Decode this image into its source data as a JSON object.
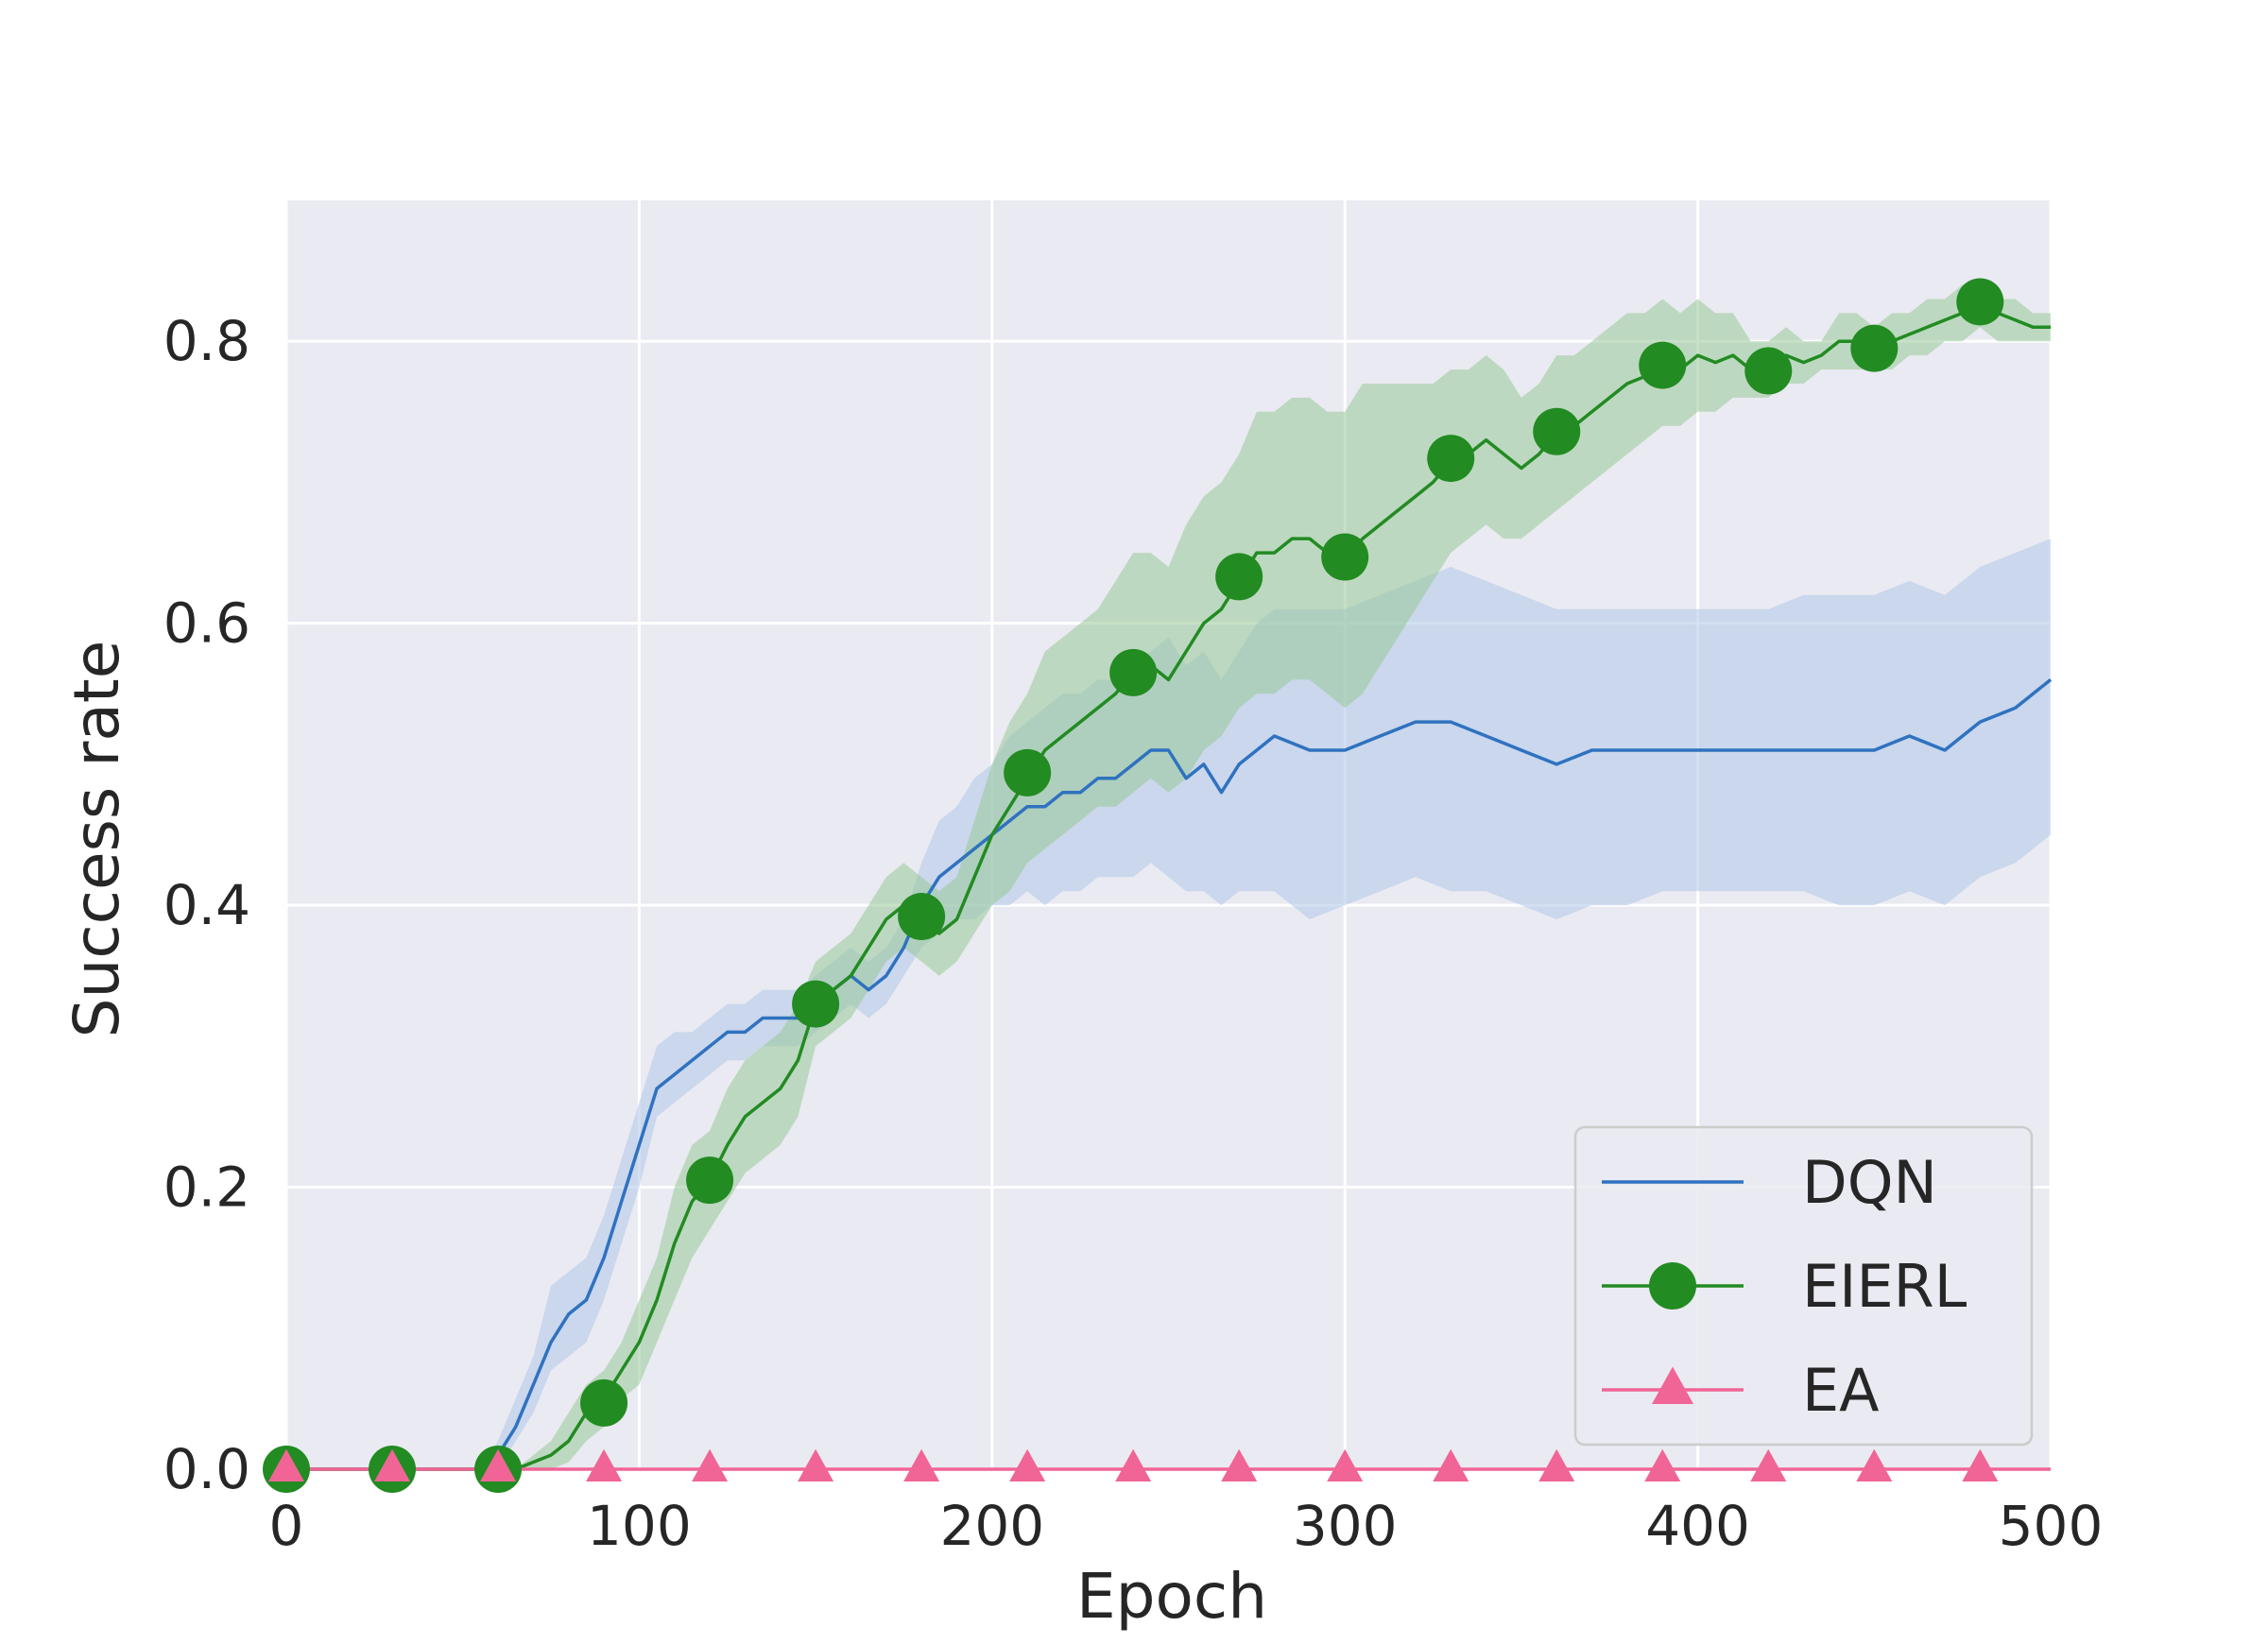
{
  "chart_data": {
    "type": "line",
    "xlabel": "Epoch",
    "ylabel": "Success rate",
    "xlim": [
      0,
      500
    ],
    "ylim": [
      0,
      0.9
    ],
    "xticks": [
      0,
      100,
      200,
      300,
      400,
      500
    ],
    "yticks": [
      "0.0",
      "0.2",
      "0.4",
      "0.6",
      "0.8"
    ],
    "grid": true,
    "legend_position": "lower-right",
    "background": "#eaeaf2",
    "series": [
      {
        "name": "DQN",
        "color": "#2f72c0",
        "band_color": "#aec7e8",
        "marker": "none",
        "x": [
          0,
          55,
          60,
          65,
          70,
          75,
          80,
          85,
          90,
          95,
          100,
          105,
          110,
          115,
          120,
          125,
          130,
          135,
          140,
          145,
          150,
          155,
          160,
          165,
          170,
          175,
          180,
          185,
          190,
          195,
          200,
          205,
          210,
          215,
          220,
          225,
          230,
          235,
          240,
          245,
          250,
          255,
          260,
          265,
          270,
          275,
          280,
          290,
          300,
          310,
          320,
          330,
          340,
          350,
          360,
          370,
          380,
          390,
          400,
          410,
          420,
          430,
          440,
          450,
          460,
          470,
          480,
          490,
          500
        ],
        "y": [
          0,
          0,
          0.01,
          0.03,
          0.06,
          0.09,
          0.11,
          0.12,
          0.15,
          0.19,
          0.23,
          0.27,
          0.28,
          0.29,
          0.3,
          0.31,
          0.31,
          0.32,
          0.32,
          0.32,
          0.33,
          0.34,
          0.35,
          0.34,
          0.35,
          0.37,
          0.4,
          0.42,
          0.43,
          0.44,
          0.45,
          0.46,
          0.47,
          0.47,
          0.48,
          0.48,
          0.49,
          0.49,
          0.5,
          0.51,
          0.51,
          0.49,
          0.5,
          0.48,
          0.5,
          0.51,
          0.52,
          0.51,
          0.51,
          0.52,
          0.53,
          0.53,
          0.52,
          0.51,
          0.5,
          0.51,
          0.51,
          0.51,
          0.51,
          0.51,
          0.51,
          0.51,
          0.51,
          0.51,
          0.52,
          0.51,
          0.53,
          0.54,
          0.56
        ],
        "lower": [
          0,
          0,
          0,
          0.02,
          0.04,
          0.07,
          0.08,
          0.09,
          0.12,
          0.16,
          0.2,
          0.25,
          0.26,
          0.27,
          0.28,
          0.29,
          0.29,
          0.3,
          0.3,
          0.3,
          0.31,
          0.32,
          0.33,
          0.32,
          0.33,
          0.35,
          0.37,
          0.38,
          0.39,
          0.39,
          0.4,
          0.4,
          0.41,
          0.4,
          0.41,
          0.41,
          0.42,
          0.42,
          0.42,
          0.43,
          0.42,
          0.41,
          0.41,
          0.4,
          0.41,
          0.41,
          0.41,
          0.39,
          0.4,
          0.41,
          0.42,
          0.41,
          0.41,
          0.4,
          0.39,
          0.4,
          0.4,
          0.41,
          0.41,
          0.41,
          0.41,
          0.41,
          0.4,
          0.4,
          0.41,
          0.4,
          0.42,
          0.43,
          0.45
        ],
        "upper": [
          0,
          0,
          0.02,
          0.05,
          0.08,
          0.13,
          0.14,
          0.15,
          0.18,
          0.22,
          0.26,
          0.3,
          0.31,
          0.31,
          0.32,
          0.33,
          0.33,
          0.34,
          0.34,
          0.34,
          0.35,
          0.36,
          0.37,
          0.36,
          0.37,
          0.39,
          0.43,
          0.46,
          0.47,
          0.49,
          0.5,
          0.52,
          0.53,
          0.54,
          0.55,
          0.55,
          0.56,
          0.56,
          0.57,
          0.58,
          0.59,
          0.57,
          0.58,
          0.56,
          0.58,
          0.6,
          0.61,
          0.61,
          0.61,
          0.62,
          0.63,
          0.64,
          0.63,
          0.62,
          0.61,
          0.61,
          0.61,
          0.61,
          0.61,
          0.61,
          0.61,
          0.62,
          0.62,
          0.62,
          0.63,
          0.62,
          0.64,
          0.65,
          0.66
        ]
      },
      {
        "name": "EIERL",
        "color": "#228b22",
        "band_color": "#98c998",
        "marker": "circle",
        "x": [
          0,
          60,
          65,
          70,
          75,
          80,
          85,
          90,
          95,
          100,
          105,
          110,
          115,
          120,
          125,
          130,
          135,
          140,
          145,
          150,
          155,
          160,
          165,
          170,
          175,
          180,
          185,
          190,
          195,
          200,
          205,
          210,
          215,
          220,
          225,
          230,
          235,
          240,
          245,
          250,
          255,
          260,
          265,
          270,
          275,
          280,
          285,
          290,
          295,
          300,
          305,
          310,
          315,
          320,
          325,
          330,
          335,
          340,
          345,
          350,
          355,
          360,
          365,
          370,
          375,
          380,
          385,
          390,
          395,
          400,
          405,
          410,
          415,
          420,
          425,
          430,
          435,
          440,
          445,
          450,
          455,
          460,
          465,
          470,
          475,
          480,
          485,
          490,
          495,
          500
        ],
        "y": [
          0,
          0,
          0,
          0.005,
          0.01,
          0.02,
          0.04,
          0.05,
          0.07,
          0.09,
          0.12,
          0.16,
          0.19,
          0.205,
          0.23,
          0.25,
          0.26,
          0.27,
          0.29,
          0.33,
          0.34,
          0.35,
          0.37,
          0.39,
          0.4,
          0.39,
          0.38,
          0.39,
          0.42,
          0.45,
          0.47,
          0.49,
          0.51,
          0.52,
          0.53,
          0.54,
          0.55,
          0.565,
          0.57,
          0.56,
          0.58,
          0.6,
          0.61,
          0.63,
          0.65,
          0.65,
          0.66,
          0.66,
          0.65,
          0.645,
          0.66,
          0.67,
          0.68,
          0.69,
          0.7,
          0.715,
          0.72,
          0.73,
          0.72,
          0.71,
          0.72,
          0.735,
          0.74,
          0.75,
          0.76,
          0.77,
          0.775,
          0.785,
          0.78,
          0.79,
          0.785,
          0.79,
          0.78,
          0.78,
          0.79,
          0.785,
          0.79,
          0.8,
          0.8,
          0.795,
          0.8,
          0.805,
          0.81,
          0.815,
          0.82,
          0.825,
          0.82,
          0.815,
          0.81,
          0.81
        ],
        "lower": [
          0,
          0,
          0,
          0,
          0,
          0.005,
          0.02,
          0.03,
          0.05,
          0.06,
          0.09,
          0.12,
          0.15,
          0.17,
          0.19,
          0.21,
          0.22,
          0.23,
          0.25,
          0.3,
          0.31,
          0.32,
          0.34,
          0.36,
          0.37,
          0.36,
          0.35,
          0.36,
          0.38,
          0.4,
          0.41,
          0.43,
          0.44,
          0.45,
          0.46,
          0.47,
          0.47,
          0.48,
          0.49,
          0.48,
          0.49,
          0.51,
          0.52,
          0.54,
          0.55,
          0.55,
          0.56,
          0.56,
          0.55,
          0.54,
          0.55,
          0.57,
          0.59,
          0.61,
          0.63,
          0.65,
          0.66,
          0.67,
          0.66,
          0.66,
          0.67,
          0.68,
          0.69,
          0.7,
          0.71,
          0.72,
          0.73,
          0.74,
          0.74,
          0.75,
          0.75,
          0.76,
          0.76,
          0.76,
          0.77,
          0.77,
          0.78,
          0.78,
          0.78,
          0.78,
          0.78,
          0.79,
          0.79,
          0.8,
          0.8,
          0.81,
          0.8,
          0.8,
          0.8,
          0.8
        ],
        "upper": [
          0,
          0,
          0,
          0.01,
          0.02,
          0.04,
          0.06,
          0.07,
          0.09,
          0.12,
          0.15,
          0.2,
          0.23,
          0.24,
          0.27,
          0.29,
          0.3,
          0.31,
          0.33,
          0.36,
          0.37,
          0.38,
          0.4,
          0.42,
          0.43,
          0.42,
          0.41,
          0.42,
          0.46,
          0.5,
          0.53,
          0.55,
          0.58,
          0.59,
          0.6,
          0.61,
          0.63,
          0.65,
          0.65,
          0.64,
          0.67,
          0.69,
          0.7,
          0.72,
          0.75,
          0.75,
          0.76,
          0.76,
          0.75,
          0.75,
          0.77,
          0.77,
          0.77,
          0.77,
          0.77,
          0.78,
          0.78,
          0.79,
          0.78,
          0.76,
          0.77,
          0.79,
          0.79,
          0.8,
          0.81,
          0.82,
          0.82,
          0.83,
          0.82,
          0.83,
          0.82,
          0.82,
          0.8,
          0.8,
          0.81,
          0.8,
          0.8,
          0.82,
          0.82,
          0.81,
          0.82,
          0.82,
          0.83,
          0.83,
          0.84,
          0.84,
          0.83,
          0.83,
          0.82,
          0.82
        ],
        "marker_x": [
          0,
          30,
          60,
          90,
          120,
          150,
          180,
          210,
          240,
          270,
          300,
          330,
          360,
          390,
          420,
          450,
          480
        ],
        "marker_y": [
          0,
          0,
          0,
          0.047,
          0.205,
          0.33,
          0.392,
          0.494,
          0.565,
          0.633,
          0.647,
          0.717,
          0.736,
          0.783,
          0.779,
          0.795,
          0.828
        ]
      },
      {
        "name": "EA",
        "color": "#f06595",
        "marker": "triangle",
        "x": [
          0,
          500
        ],
        "y": [
          0,
          0
        ],
        "marker_x": [
          0,
          30,
          60,
          90,
          120,
          150,
          180,
          210,
          240,
          270,
          300,
          330,
          360,
          390,
          420,
          450,
          480
        ],
        "marker_y": [
          0,
          0,
          0,
          0,
          0,
          0,
          0,
          0,
          0,
          0,
          0,
          0,
          0,
          0,
          0,
          0,
          0
        ]
      }
    ]
  }
}
